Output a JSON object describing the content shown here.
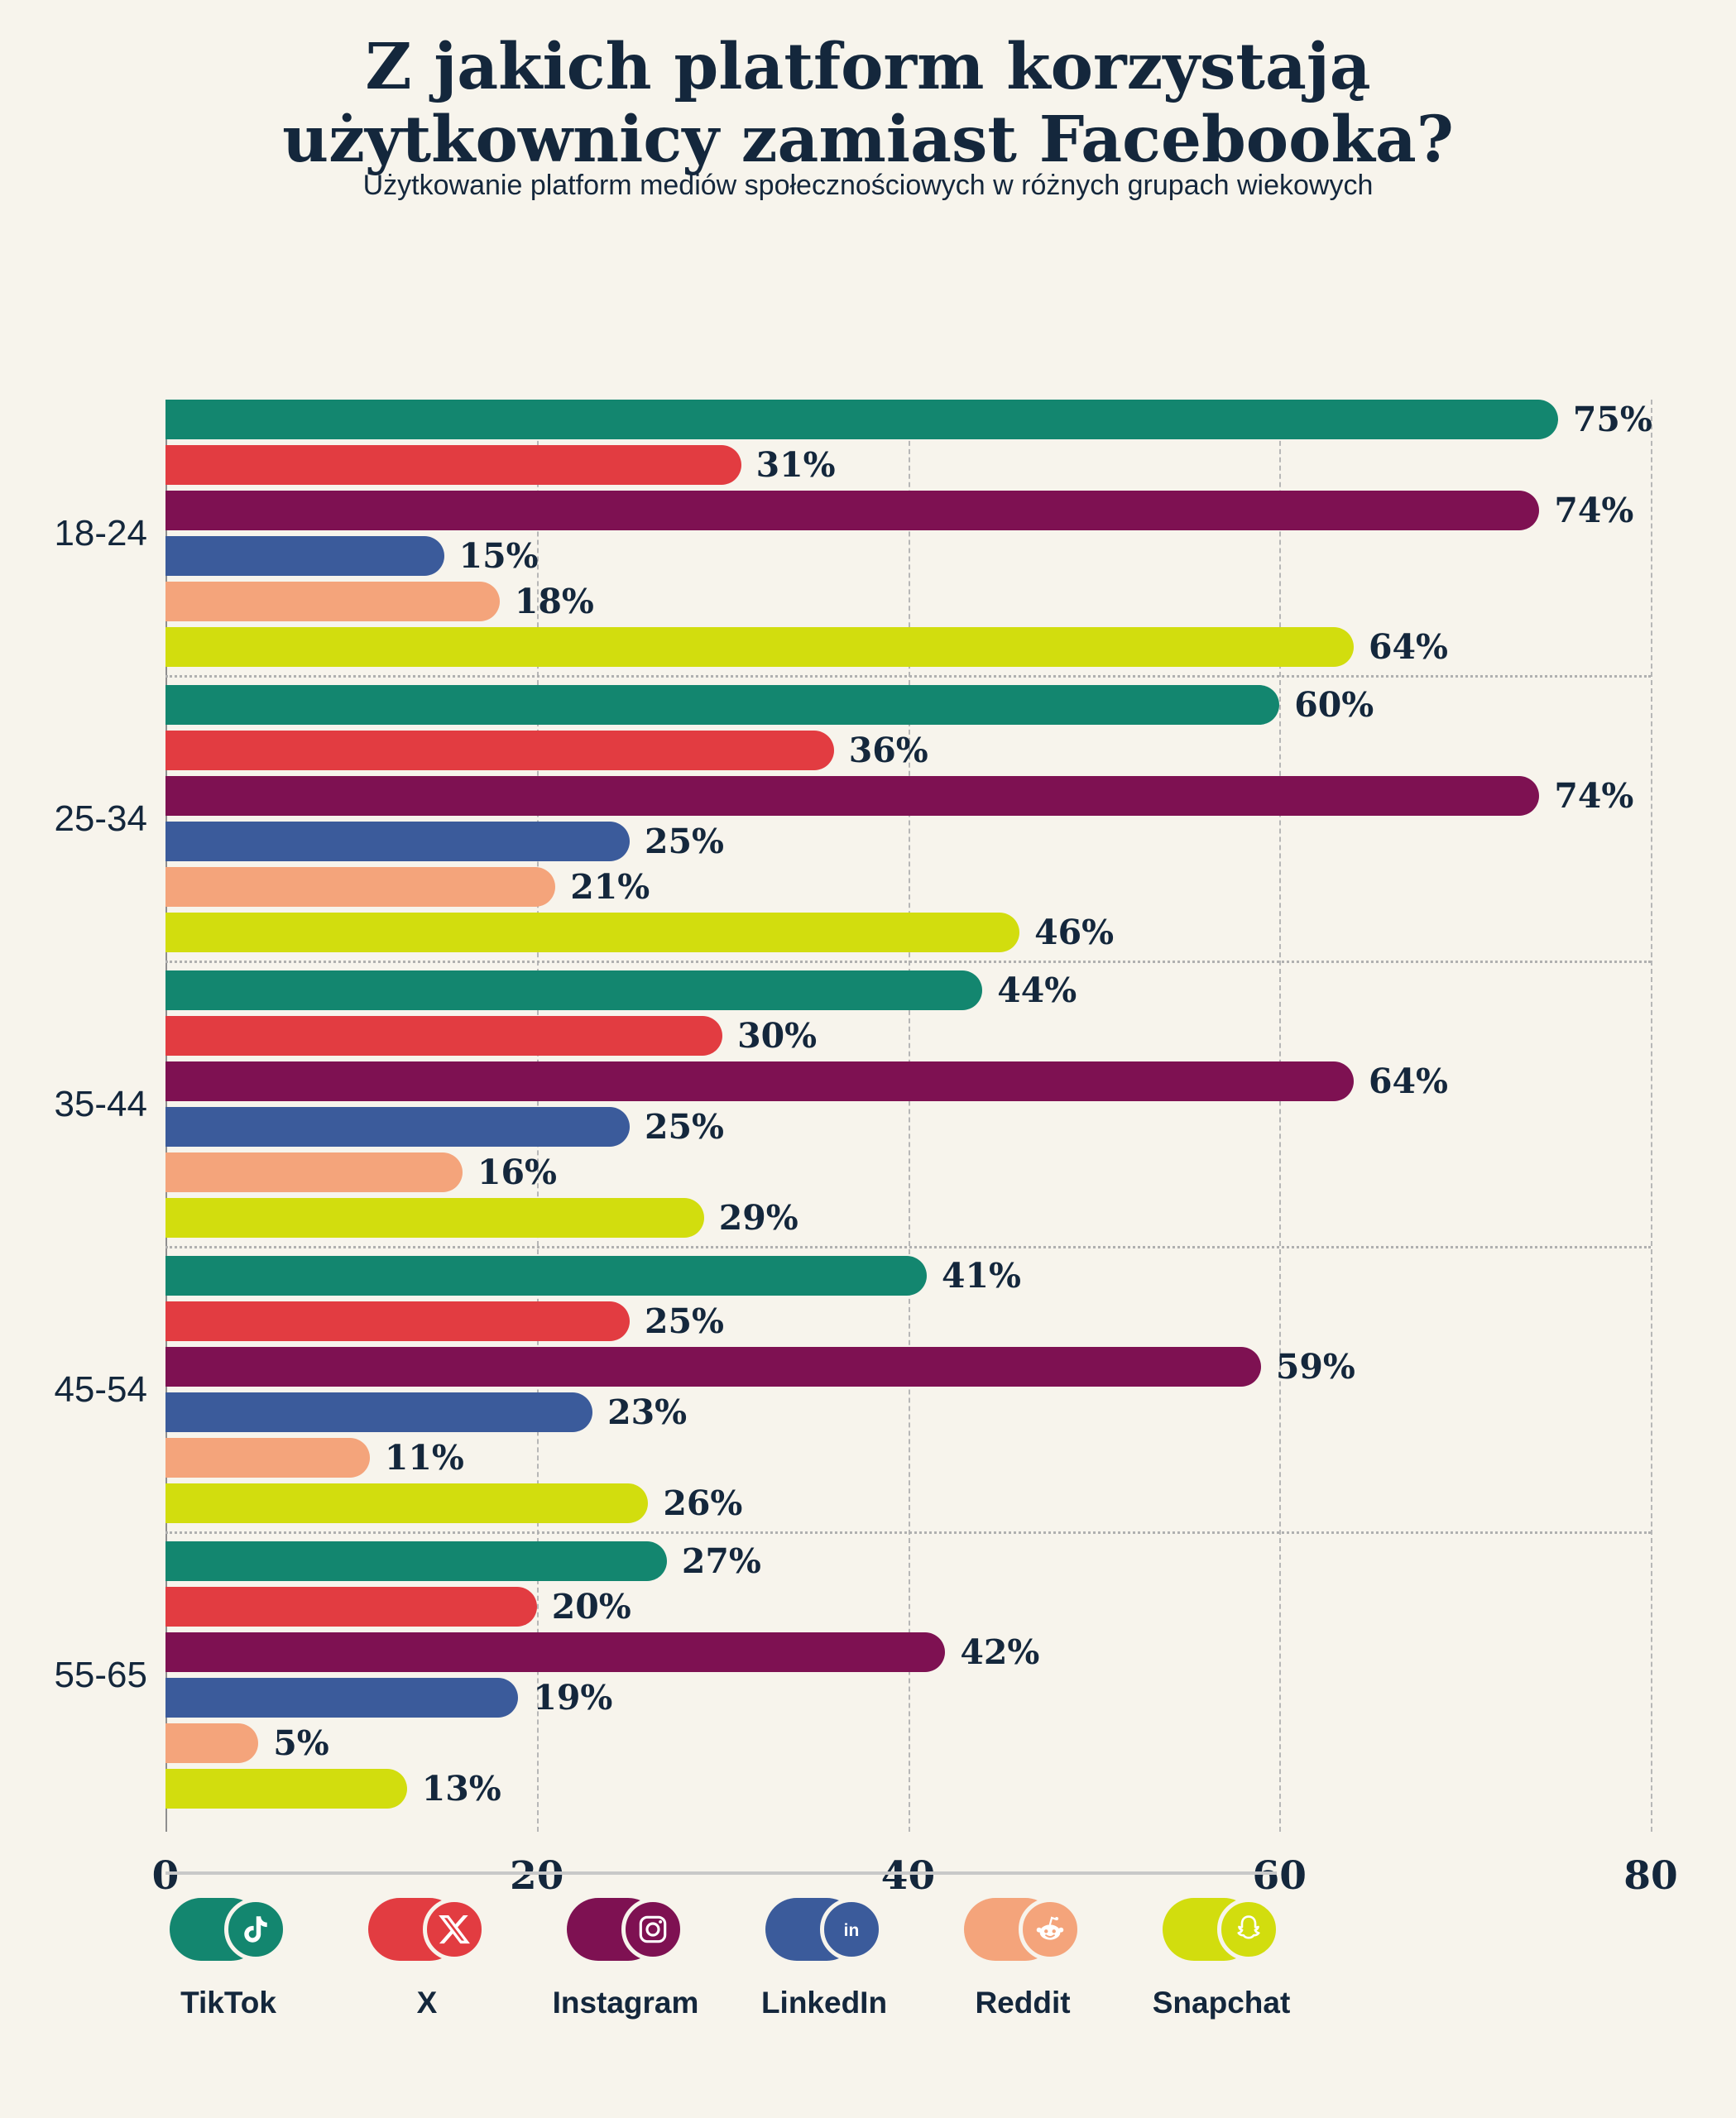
{
  "title_line1": "Z jakich platform korzystają",
  "title_line2": "użytkownicy zamiast Facebooka?",
  "subtitle": "Użytkowanie platform mediów społecznościowych w różnych grupach wiekowych",
  "colors": {
    "background": "#F7F4EC",
    "text": "#14273C",
    "gridline": "#B7B7B7",
    "axis": "#8F8F8F",
    "group_separator": "#B0B0B0",
    "legend_divider": "#C8C8C8"
  },
  "chart_data": {
    "type": "bar",
    "orientation": "horizontal",
    "title": "Z jakich platform korzystają użytkownicy zamiast Facebooka?",
    "subtitle": "Użytkowanie platform mediów społecznościowych w różnych grupach wiekowych",
    "categories": [
      "18-24",
      "25-34",
      "35-44",
      "45-54",
      "55-65"
    ],
    "series": [
      {
        "name": "TikTok",
        "icon": "tiktok-icon",
        "color": "#13866F",
        "values": [
          75,
          60,
          44,
          41,
          27
        ]
      },
      {
        "name": "X",
        "icon": "x-icon",
        "color": "#E23C41",
        "values": [
          31,
          36,
          30,
          25,
          20
        ]
      },
      {
        "name": "Instagram",
        "icon": "instagram-icon",
        "color": "#7E1152",
        "values": [
          74,
          74,
          64,
          59,
          42
        ]
      },
      {
        "name": "LinkedIn",
        "icon": "linkedin-icon",
        "color": "#3B5B9B",
        "values": [
          15,
          25,
          25,
          23,
          19
        ]
      },
      {
        "name": "Reddit",
        "icon": "reddit-icon",
        "color": "#F4A47B",
        "values": [
          18,
          21,
          16,
          11,
          5
        ]
      },
      {
        "name": "Snapchat",
        "icon": "snapchat-icon",
        "color": "#D2DD0E",
        "values": [
          64,
          46,
          29,
          26,
          13
        ]
      }
    ],
    "xlim": [
      0,
      80
    ],
    "x_ticks": [
      0,
      20,
      40,
      60,
      80
    ],
    "value_suffix": "%",
    "grid": "dashed-vertical",
    "legend_position": "bottom"
  }
}
